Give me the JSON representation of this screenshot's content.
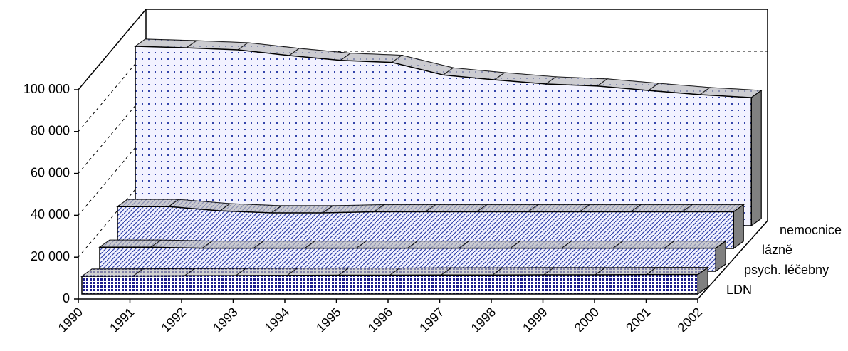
{
  "chart_data": {
    "type": "area3d",
    "categories": [
      "1990",
      "1991",
      "1992",
      "1993",
      "1994",
      "1995",
      "1996",
      "1997",
      "1998",
      "1999",
      "2000",
      "2001",
      "2002"
    ],
    "series": [
      {
        "name": "LDN",
        "color": "#1a1a8c",
        "values": [
          8500,
          8600,
          8700,
          8800,
          8900,
          9000,
          9000,
          9100,
          9100,
          9200,
          9200,
          9300,
          9300
        ]
      },
      {
        "name": "psych. léčebny",
        "color": "#3344aa",
        "values": [
          11500,
          11500,
          11000,
          11000,
          11000,
          11000,
          11000,
          11000,
          11000,
          11000,
          11000,
          11000,
          11000
        ]
      },
      {
        "name": "lázně",
        "color": "#3344aa",
        "values": [
          20000,
          20000,
          18000,
          17000,
          17000,
          17500,
          17500,
          17500,
          17500,
          17500,
          17500,
          17500,
          17500
        ]
      },
      {
        "name": "nemocnice",
        "color": "#3344aa",
        "values": [
          85700,
          85000,
          84000,
          81300,
          79000,
          78000,
          72000,
          69700,
          67700,
          66700,
          64600,
          62600,
          61200
        ]
      }
    ],
    "ylim": [
      0,
      100000
    ],
    "yticks": [
      0,
      {
        "value": 20000,
        "label": "20 000"
      },
      {
        "value": 40000,
        "label": "40 000"
      },
      {
        "value": 60000,
        "label": "60 000"
      },
      {
        "value": 80000,
        "label": "80 000"
      },
      {
        "value": 100000,
        "label": "100 000"
      }
    ],
    "grid": true
  }
}
